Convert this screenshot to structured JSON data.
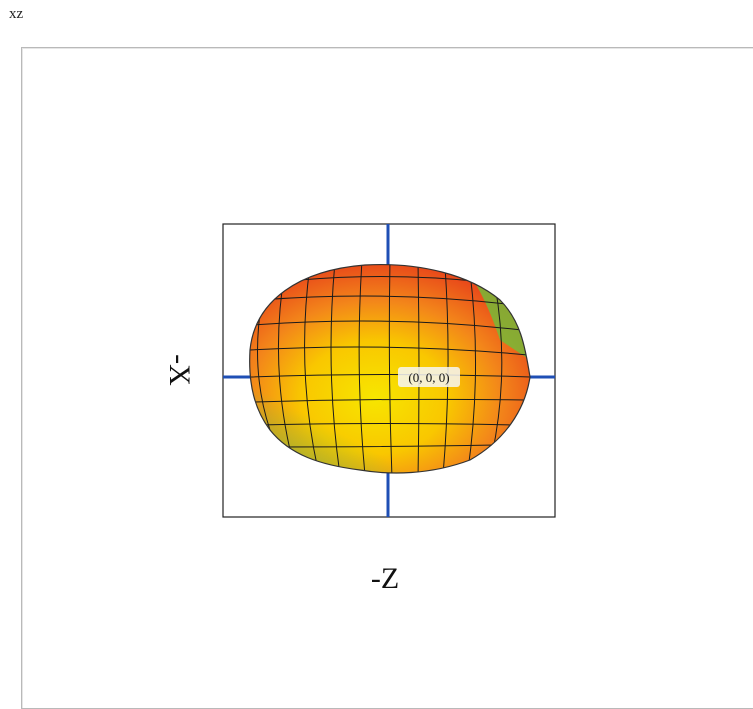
{
  "window": {
    "title": "xz"
  },
  "view": {
    "vertical_axis_label": "-X",
    "horizontal_axis_label": "-Z",
    "origin_label": "(0, 0, 0)"
  }
}
